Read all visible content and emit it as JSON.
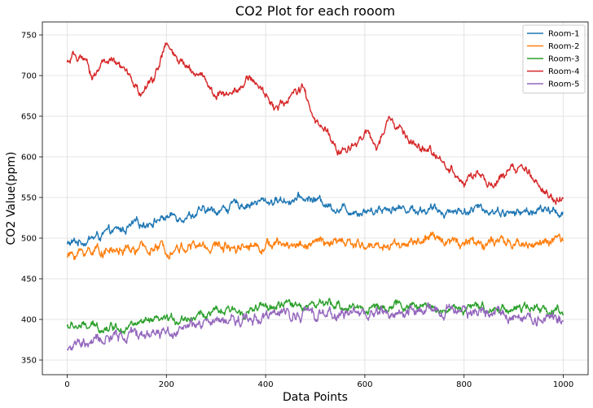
{
  "chart_data": {
    "type": "line",
    "title": "CO2 Plot for each rooom",
    "xlabel": "Data Points",
    "ylabel": "CO2 Value(ppm)",
    "xlim": [
      -50,
      1050
    ],
    "ylim": [
      332,
      766
    ],
    "xticks": [
      0,
      200,
      400,
      600,
      800,
      1000
    ],
    "yticks": [
      350,
      400,
      450,
      500,
      550,
      600,
      650,
      700,
      750
    ],
    "grid": true,
    "legend_position": "top-right",
    "n_points": 1001,
    "series": [
      {
        "name": "Room-1",
        "color": "#1f77b4",
        "anchors": [
          [
            0,
            492
          ],
          [
            50,
            500
          ],
          [
            100,
            508
          ],
          [
            150,
            518
          ],
          [
            200,
            526
          ],
          [
            250,
            530
          ],
          [
            300,
            534
          ],
          [
            350,
            542
          ],
          [
            400,
            545
          ],
          [
            450,
            548
          ],
          [
            500,
            548
          ],
          [
            550,
            536
          ],
          [
            600,
            534
          ],
          [
            650,
            538
          ],
          [
            700,
            536
          ],
          [
            750,
            534
          ],
          [
            800,
            534
          ],
          [
            850,
            536
          ],
          [
            900,
            530
          ],
          [
            950,
            534
          ],
          [
            1000,
            532
          ]
        ],
        "amplitude": 7
      },
      {
        "name": "Room-2",
        "color": "#ff7f0e",
        "anchors": [
          [
            0,
            478
          ],
          [
            50,
            486
          ],
          [
            100,
            484
          ],
          [
            150,
            486
          ],
          [
            200,
            488
          ],
          [
            250,
            490
          ],
          [
            300,
            490
          ],
          [
            350,
            492
          ],
          [
            400,
            492
          ],
          [
            450,
            492
          ],
          [
            500,
            494
          ],
          [
            550,
            494
          ],
          [
            600,
            490
          ],
          [
            650,
            492
          ],
          [
            700,
            495
          ],
          [
            750,
            500
          ],
          [
            800,
            496
          ],
          [
            850,
            494
          ],
          [
            900,
            492
          ],
          [
            950,
            494
          ],
          [
            1000,
            496
          ]
        ],
        "amplitude": 8
      },
      {
        "name": "Room-3",
        "color": "#2ca02c",
        "anchors": [
          [
            0,
            392
          ],
          [
            50,
            390
          ],
          [
            100,
            392
          ],
          [
            150,
            394
          ],
          [
            200,
            398
          ],
          [
            250,
            404
          ],
          [
            300,
            408
          ],
          [
            350,
            410
          ],
          [
            400,
            414
          ],
          [
            450,
            418
          ],
          [
            500,
            418
          ],
          [
            550,
            416
          ],
          [
            600,
            414
          ],
          [
            650,
            416
          ],
          [
            700,
            416
          ],
          [
            750,
            414
          ],
          [
            800,
            412
          ],
          [
            850,
            414
          ],
          [
            900,
            414
          ],
          [
            950,
            412
          ],
          [
            1000,
            412
          ]
        ],
        "amplitude": 7
      },
      {
        "name": "Room-4",
        "color": "#d62728",
        "anchors": [
          [
            0,
            715
          ],
          [
            25,
            725
          ],
          [
            50,
            698
          ],
          [
            75,
            720
          ],
          [
            100,
            712
          ],
          [
            125,
            700
          ],
          [
            150,
            675
          ],
          [
            175,
            698
          ],
          [
            200,
            738
          ],
          [
            225,
            715
          ],
          [
            250,
            708
          ],
          [
            275,
            700
          ],
          [
            300,
            672
          ],
          [
            325,
            680
          ],
          [
            350,
            690
          ],
          [
            375,
            696
          ],
          [
            400,
            675
          ],
          [
            425,
            660
          ],
          [
            450,
            675
          ],
          [
            475,
            684
          ],
          [
            500,
            640
          ],
          [
            525,
            630
          ],
          [
            550,
            602
          ],
          [
            575,
            615
          ],
          [
            600,
            632
          ],
          [
            625,
            610
          ],
          [
            650,
            645
          ],
          [
            675,
            632
          ],
          [
            700,
            610
          ],
          [
            725,
            608
          ],
          [
            750,
            598
          ],
          [
            775,
            586
          ],
          [
            800,
            570
          ],
          [
            825,
            578
          ],
          [
            850,
            565
          ],
          [
            875,
            572
          ],
          [
            900,
            588
          ],
          [
            925,
            580
          ],
          [
            950,
            568
          ],
          [
            975,
            552
          ],
          [
            1000,
            544
          ]
        ],
        "amplitude": 7
      },
      {
        "name": "Room-5",
        "color": "#9467bd",
        "anchors": [
          [
            0,
            365
          ],
          [
            50,
            372
          ],
          [
            100,
            378
          ],
          [
            150,
            382
          ],
          [
            200,
            386
          ],
          [
            250,
            390
          ],
          [
            300,
            395
          ],
          [
            350,
            400
          ],
          [
            400,
            404
          ],
          [
            450,
            406
          ],
          [
            500,
            408
          ],
          [
            550,
            408
          ],
          [
            600,
            408
          ],
          [
            650,
            408
          ],
          [
            700,
            410
          ],
          [
            750,
            410
          ],
          [
            800,
            410
          ],
          [
            850,
            408
          ],
          [
            900,
            406
          ],
          [
            950,
            404
          ],
          [
            1000,
            400
          ]
        ],
        "amplitude": 9
      }
    ]
  }
}
